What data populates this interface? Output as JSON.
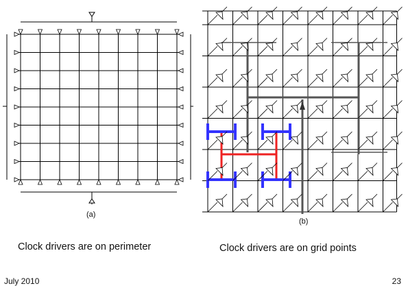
{
  "figure_a": {
    "label": "(a)",
    "caption": "Clock drivers are on perimeter"
  },
  "figure_b": {
    "label": "(b)",
    "caption": "Clock drivers are on grid points"
  },
  "footer": {
    "date": "July 2010",
    "page": "23"
  },
  "colors": {
    "h_tree_outer": "#3333ff",
    "h_tree_inner": "#ee2222",
    "grid": "#000000",
    "trunk": "#555555"
  },
  "icons": [
    "buffer-triangle-icon",
    "arrow-down-icon",
    "arrow-up-icon"
  ]
}
